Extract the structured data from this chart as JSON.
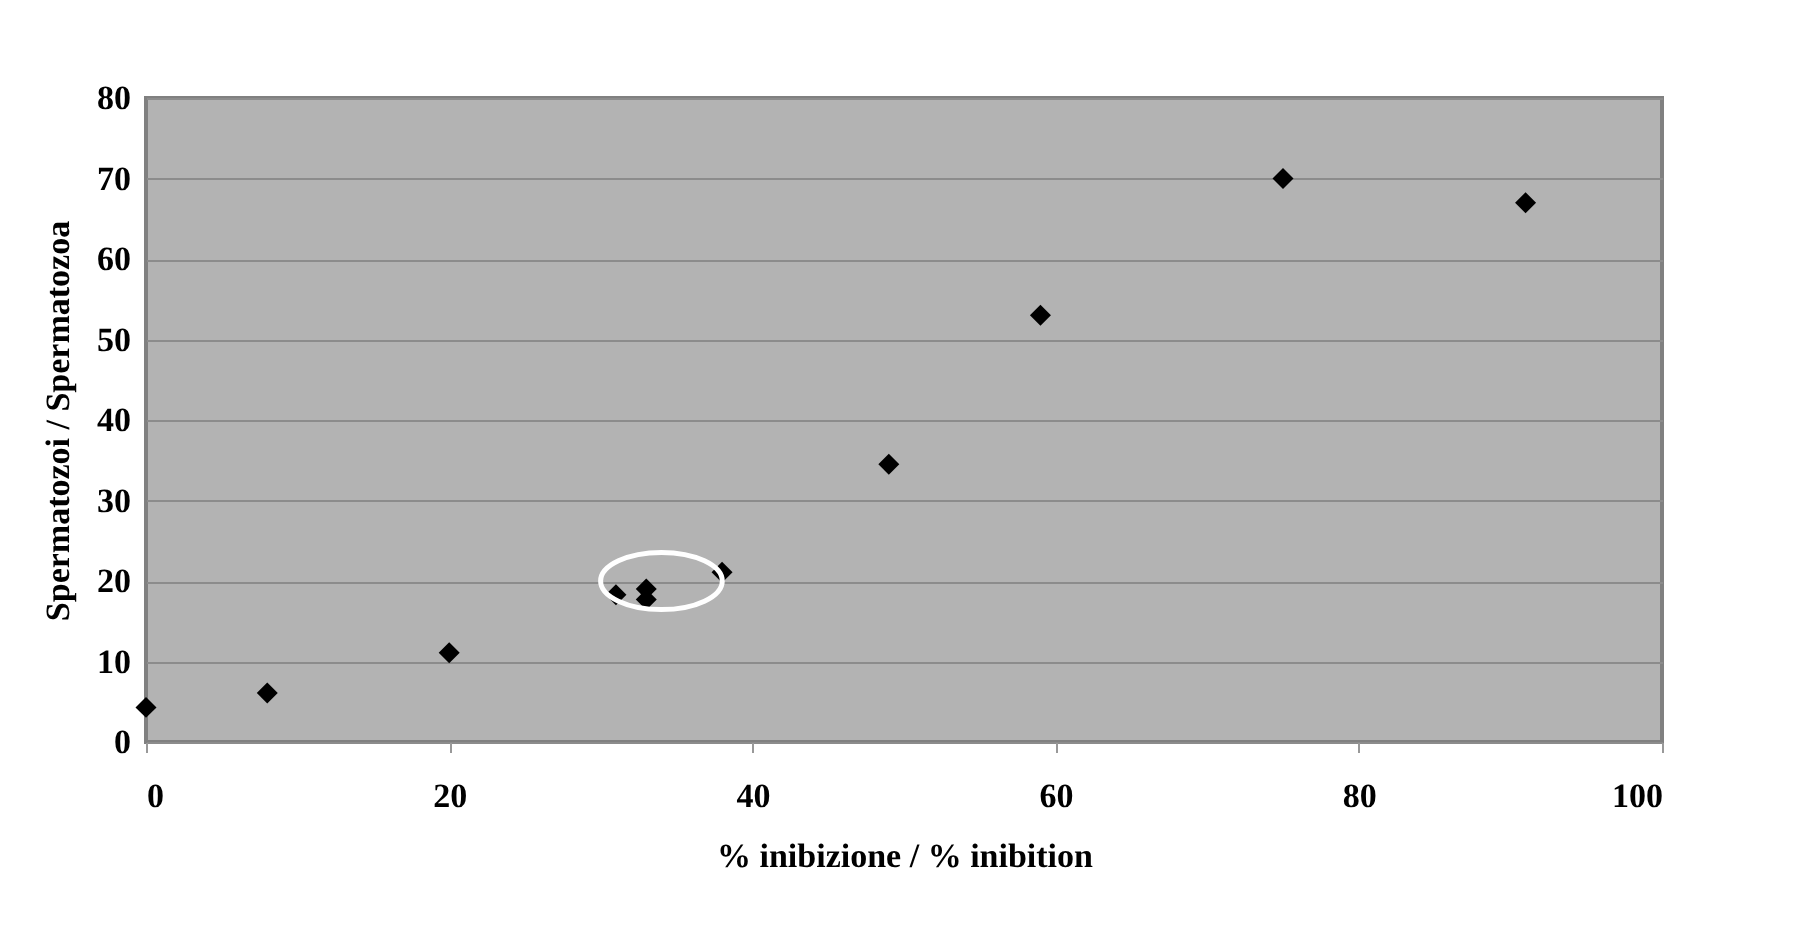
{
  "chart_data": {
    "type": "scatter",
    "xlabel": "% inibizione / % inibition",
    "ylabel": "Spermatozoi / Spermatozoa",
    "x": [
      0,
      8,
      20,
      31,
      33,
      33,
      38,
      49,
      59,
      75,
      91
    ],
    "series": [
      {
        "color": "#000000",
        "values": [
          4.3,
          6.1,
          11.1,
          18.3,
          19.0,
          17.7,
          21.1,
          34.5,
          53,
          70,
          67
        ]
      }
    ],
    "xlim": [
      0,
      100
    ],
    "xticks": [
      0,
      20,
      40,
      60,
      80,
      100
    ],
    "ylim": [
      0,
      80
    ],
    "yticks": [
      0,
      10,
      20,
      30,
      40,
      50,
      60,
      70,
      80
    ],
    "grid": "y",
    "marker": "diamond"
  }
}
